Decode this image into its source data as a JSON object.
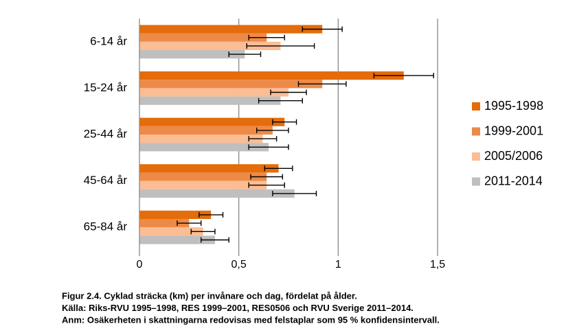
{
  "chart_data": {
    "type": "hbar",
    "categories": [
      "6-14 år",
      "15-24 år",
      "25-44 år",
      "45-64 år",
      "65-84 år"
    ],
    "series": [
      {
        "name": "1995-1998",
        "color": "#e46c0a",
        "values": [
          0.92,
          1.33,
          0.73,
          0.7,
          0.36
        ],
        "errors": [
          0.1,
          0.15,
          0.06,
          0.07,
          0.06
        ]
      },
      {
        "name": "1999-2001",
        "color": "#ee8a48",
        "values": [
          0.64,
          0.92,
          0.67,
          0.64,
          0.25
        ],
        "errors": [
          0.09,
          0.12,
          0.08,
          0.08,
          0.06
        ]
      },
      {
        "name": "2005/2006",
        "color": "#fbbd94",
        "values": [
          0.71,
          0.75,
          0.62,
          0.64,
          0.32
        ],
        "errors": [
          0.17,
          0.09,
          0.07,
          0.09,
          0.06
        ]
      },
      {
        "name": "2011-2014",
        "color": "#bfbfbf",
        "values": [
          0.53,
          0.71,
          0.65,
          0.78,
          0.38
        ],
        "errors": [
          0.08,
          0.11,
          0.1,
          0.11,
          0.07
        ]
      }
    ],
    "xlim": [
      0,
      1.5
    ],
    "xticks": [
      0,
      {
        "value": 0.5,
        "label": "0,5"
      },
      1,
      {
        "value": 1.5,
        "label": "1,5"
      }
    ],
    "grid": true,
    "legend": "right",
    "caption": [
      "Figur 2.4. Cyklad sträcka (km) per invånare och dag, fördelat på ålder.",
      "Källa: Riks-RVU 1995–1998, RES 1999–2001, RES0506 och RVU Sverige 2011–2014.",
      "Anm: Osäkerheten i skattningarna redovisas med felstaplar som 95 % konfidensintervall."
    ]
  }
}
